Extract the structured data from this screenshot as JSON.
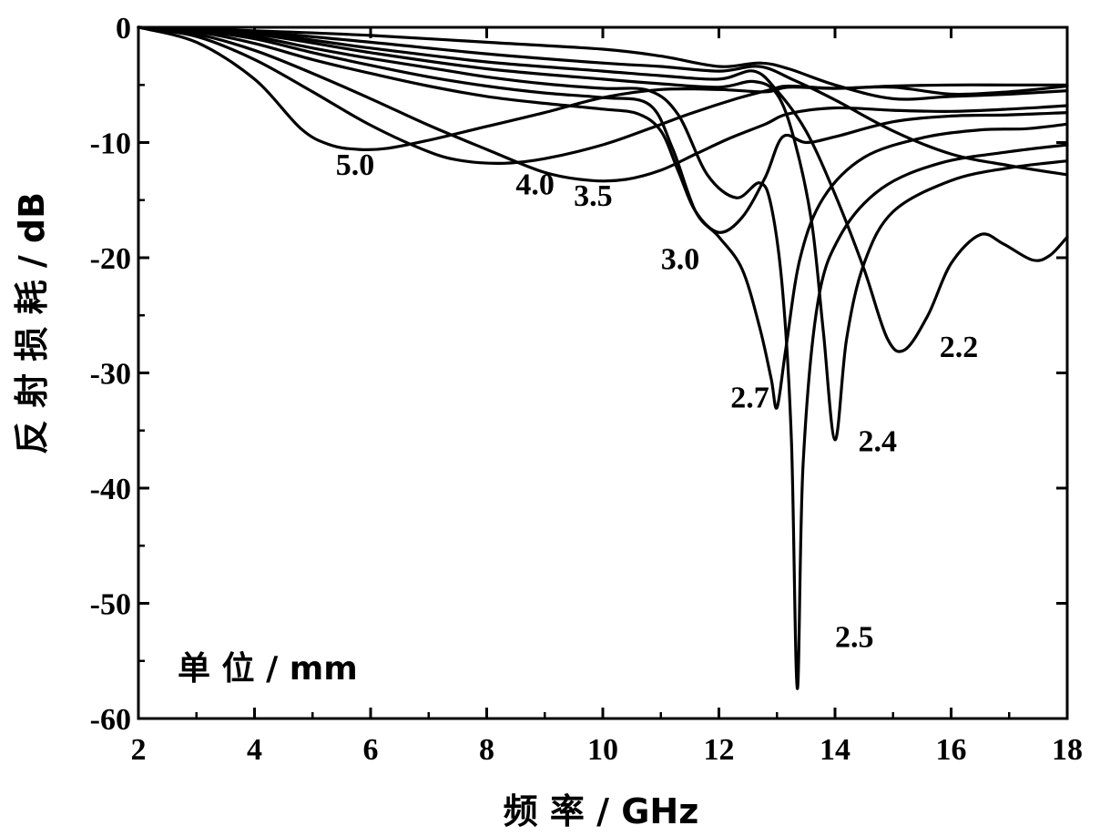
{
  "chart_data": {
    "type": "line",
    "title": "",
    "xlabel": "频 率 / GHz",
    "ylabel": "反 射 损 耗 / dB",
    "unit_note": "单 位 / mm",
    "xlim": [
      2,
      18
    ],
    "ylim": [
      -60,
      0
    ],
    "xticks": [
      2,
      4,
      6,
      8,
      10,
      12,
      14,
      16,
      18
    ],
    "yticks": [
      0,
      -10,
      -20,
      -30,
      -40,
      -50,
      -60
    ],
    "grid": false,
    "line_color": "#000000",
    "series": [
      {
        "name": "5.0",
        "label_at": [
          5.4,
          -12.8
        ],
        "points": [
          [
            2,
            0
          ],
          [
            3,
            -1.3
          ],
          [
            4,
            -4.5
          ],
          [
            4.8,
            -8.8
          ],
          [
            5.3,
            -10.2
          ],
          [
            5.8,
            -10.6
          ],
          [
            6.3,
            -10.5
          ],
          [
            7,
            -9.8
          ],
          [
            8,
            -8.6
          ],
          [
            9,
            -7.4
          ],
          [
            10,
            -6.1
          ],
          [
            11,
            -5.4
          ],
          [
            12,
            -5.4
          ],
          [
            12.8,
            -5.6
          ],
          [
            13.2,
            -5.2
          ],
          [
            14,
            -5.3
          ],
          [
            15,
            -5.1
          ],
          [
            16,
            -5.0
          ],
          [
            17,
            -5.0
          ],
          [
            18,
            -5.0
          ]
        ]
      },
      {
        "name": "4.0",
        "label_at": [
          8.5,
          -14.5
        ],
        "points": [
          [
            2,
            0
          ],
          [
            3,
            -0.8
          ],
          [
            4,
            -2.8
          ],
          [
            5,
            -5.6
          ],
          [
            6,
            -8.5
          ],
          [
            7,
            -10.8
          ],
          [
            7.6,
            -11.6
          ],
          [
            8.3,
            -11.8
          ],
          [
            9,
            -11.4
          ],
          [
            10,
            -10.2
          ],
          [
            10.8,
            -8.8
          ],
          [
            11.5,
            -7.5
          ],
          [
            12.3,
            -6.2
          ],
          [
            12.9,
            -5.4
          ],
          [
            13.2,
            -5.1
          ],
          [
            14,
            -5.3
          ],
          [
            15,
            -5.2
          ],
          [
            16,
            -5.8
          ],
          [
            17,
            -5.6
          ],
          [
            18,
            -5.1
          ]
        ]
      },
      {
        "name": "3.5",
        "label_at": [
          9.5,
          -15.5
        ],
        "points": [
          [
            2,
            0
          ],
          [
            3,
            -0.6
          ],
          [
            4,
            -2.0
          ],
          [
            5,
            -4.0
          ],
          [
            6,
            -6.2
          ],
          [
            7,
            -8.5
          ],
          [
            8,
            -10.6
          ],
          [
            9,
            -12.6
          ],
          [
            9.8,
            -13.3
          ],
          [
            10.4,
            -13.2
          ],
          [
            11,
            -12.4
          ],
          [
            11.6,
            -11.0
          ],
          [
            12.2,
            -9.6
          ],
          [
            12.8,
            -8.4
          ],
          [
            13.2,
            -7.5
          ],
          [
            14,
            -7.0
          ],
          [
            15,
            -7.2
          ],
          [
            16,
            -7.3
          ],
          [
            17,
            -7.1
          ],
          [
            18,
            -6.8
          ]
        ]
      },
      {
        "name": "3.0",
        "label_at": [
          11.0,
          -21.0
        ],
        "points": [
          [
            2,
            0
          ],
          [
            3,
            -0.4
          ],
          [
            4,
            -1.4
          ],
          [
            5,
            -2.8
          ],
          [
            6,
            -4.0
          ],
          [
            7,
            -5.1
          ],
          [
            8,
            -6.0
          ],
          [
            9,
            -6.6
          ],
          [
            10,
            -7.1
          ],
          [
            10.6,
            -7.5
          ],
          [
            11,
            -9.0
          ],
          [
            11.3,
            -12.5
          ],
          [
            11.6,
            -16.0
          ],
          [
            12,
            -17.8
          ],
          [
            12.4,
            -16.5
          ],
          [
            12.8,
            -13.0
          ],
          [
            13.1,
            -9.5
          ],
          [
            13.5,
            -10.0
          ],
          [
            14,
            -9.5
          ],
          [
            15,
            -8.2
          ],
          [
            16,
            -7.7
          ],
          [
            17,
            -7.6
          ],
          [
            18,
            -7.4
          ]
        ]
      },
      {
        "name": "2.7",
        "label_at": [
          12.2,
          -33.0
        ],
        "points": [
          [
            2,
            0
          ],
          [
            3,
            -0.3
          ],
          [
            4,
            -1.0
          ],
          [
            5,
            -2.2
          ],
          [
            6,
            -3.3
          ],
          [
            7,
            -4.3
          ],
          [
            8,
            -5.1
          ],
          [
            9,
            -5.7
          ],
          [
            10,
            -6.1
          ],
          [
            10.8,
            -6.7
          ],
          [
            11.2,
            -10.5
          ],
          [
            11.6,
            -16.0
          ],
          [
            12,
            -18.2
          ],
          [
            12.4,
            -21.0
          ],
          [
            12.7,
            -26.0
          ],
          [
            12.9,
            -30.5
          ],
          [
            13.0,
            -33.0
          ],
          [
            13.15,
            -28.0
          ],
          [
            13.4,
            -20.0
          ],
          [
            13.8,
            -14.8
          ],
          [
            14.5,
            -11.3
          ],
          [
            15.5,
            -9.6
          ],
          [
            16.5,
            -8.9
          ],
          [
            17.3,
            -8.8
          ],
          [
            18,
            -8.4
          ]
        ]
      },
      {
        "name": "2.5",
        "label_at": [
          14.0,
          -53.8
        ],
        "points": [
          [
            2,
            0
          ],
          [
            3,
            -0.2
          ],
          [
            4,
            -0.8
          ],
          [
            5,
            -1.8
          ],
          [
            6,
            -2.7
          ],
          [
            7,
            -3.5
          ],
          [
            8,
            -4.3
          ],
          [
            9,
            -4.9
          ],
          [
            10,
            -5.3
          ],
          [
            10.8,
            -5.5
          ],
          [
            11.3,
            -7.6
          ],
          [
            11.8,
            -12.8
          ],
          [
            12.3,
            -14.8
          ],
          [
            12.7,
            -13.5
          ],
          [
            12.9,
            -15.5
          ],
          [
            13.1,
            -23.0
          ],
          [
            13.25,
            -36.0
          ],
          [
            13.35,
            -57.4
          ],
          [
            13.45,
            -38.0
          ],
          [
            13.7,
            -24.0
          ],
          [
            14.1,
            -18.0
          ],
          [
            14.8,
            -14.0
          ],
          [
            15.8,
            -11.8
          ],
          [
            17,
            -10.8
          ],
          [
            18,
            -10.2
          ]
        ]
      },
      {
        "name": "2.4",
        "label_at": [
          14.4,
          -36.8
        ],
        "points": [
          [
            2,
            0
          ],
          [
            4,
            -0.6
          ],
          [
            6,
            -2.2
          ],
          [
            8,
            -3.6
          ],
          [
            10,
            -4.5
          ],
          [
            11,
            -4.9
          ],
          [
            12,
            -5.2
          ],
          [
            12.6,
            -4.7
          ],
          [
            13.0,
            -5.8
          ],
          [
            13.3,
            -9.8
          ],
          [
            13.6,
            -17.0
          ],
          [
            13.8,
            -26.5
          ],
          [
            14.0,
            -35.8
          ],
          [
            14.2,
            -27.0
          ],
          [
            14.5,
            -20.5
          ],
          [
            15,
            -16.0
          ],
          [
            16,
            -13.3
          ],
          [
            17,
            -12.2
          ],
          [
            18,
            -11.6
          ]
        ]
      },
      {
        "name": "2.2",
        "label_at": [
          15.8,
          -28.6
        ],
        "points": [
          [
            2,
            0
          ],
          [
            4,
            -0.5
          ],
          [
            6,
            -1.8
          ],
          [
            8,
            -3.0
          ],
          [
            10,
            -3.8
          ],
          [
            11,
            -4.2
          ],
          [
            12,
            -4.5
          ],
          [
            12.6,
            -3.8
          ],
          [
            13.0,
            -5.5
          ],
          [
            13.5,
            -9.0
          ],
          [
            14.0,
            -14.5
          ],
          [
            14.5,
            -21.0
          ],
          [
            14.9,
            -27.0
          ],
          [
            15.2,
            -28.0
          ],
          [
            15.6,
            -25.0
          ],
          [
            16,
            -20.5
          ],
          [
            16.5,
            -18.0
          ],
          [
            16.9,
            -18.8
          ],
          [
            17.4,
            -20.2
          ],
          [
            17.7,
            -19.8
          ],
          [
            18,
            -18.2
          ]
        ]
      },
      {
        "name": "",
        "points": [
          [
            2,
            0
          ],
          [
            4,
            -0.4
          ],
          [
            6,
            -1.3
          ],
          [
            8,
            -2.3
          ],
          [
            10,
            -3.1
          ],
          [
            11,
            -3.4
          ],
          [
            12,
            -3.8
          ],
          [
            12.7,
            -3.4
          ],
          [
            13.3,
            -4.6
          ],
          [
            14,
            -6.3
          ],
          [
            15,
            -9.0
          ],
          [
            16,
            -11.0
          ],
          [
            17,
            -12.0
          ],
          [
            18,
            -12.8
          ]
        ]
      },
      {
        "name": "",
        "points": [
          [
            2,
            0
          ],
          [
            4,
            -0.3
          ],
          [
            6,
            -0.7
          ],
          [
            8,
            -1.3
          ],
          [
            10,
            -1.9
          ],
          [
            11,
            -2.5
          ],
          [
            12,
            -3.4
          ],
          [
            12.7,
            -3.1
          ],
          [
            13.2,
            -3.6
          ],
          [
            14,
            -5.0
          ],
          [
            15,
            -6.2
          ],
          [
            16,
            -6.0
          ],
          [
            17,
            -5.8
          ],
          [
            18,
            -5.5
          ]
        ]
      }
    ]
  }
}
